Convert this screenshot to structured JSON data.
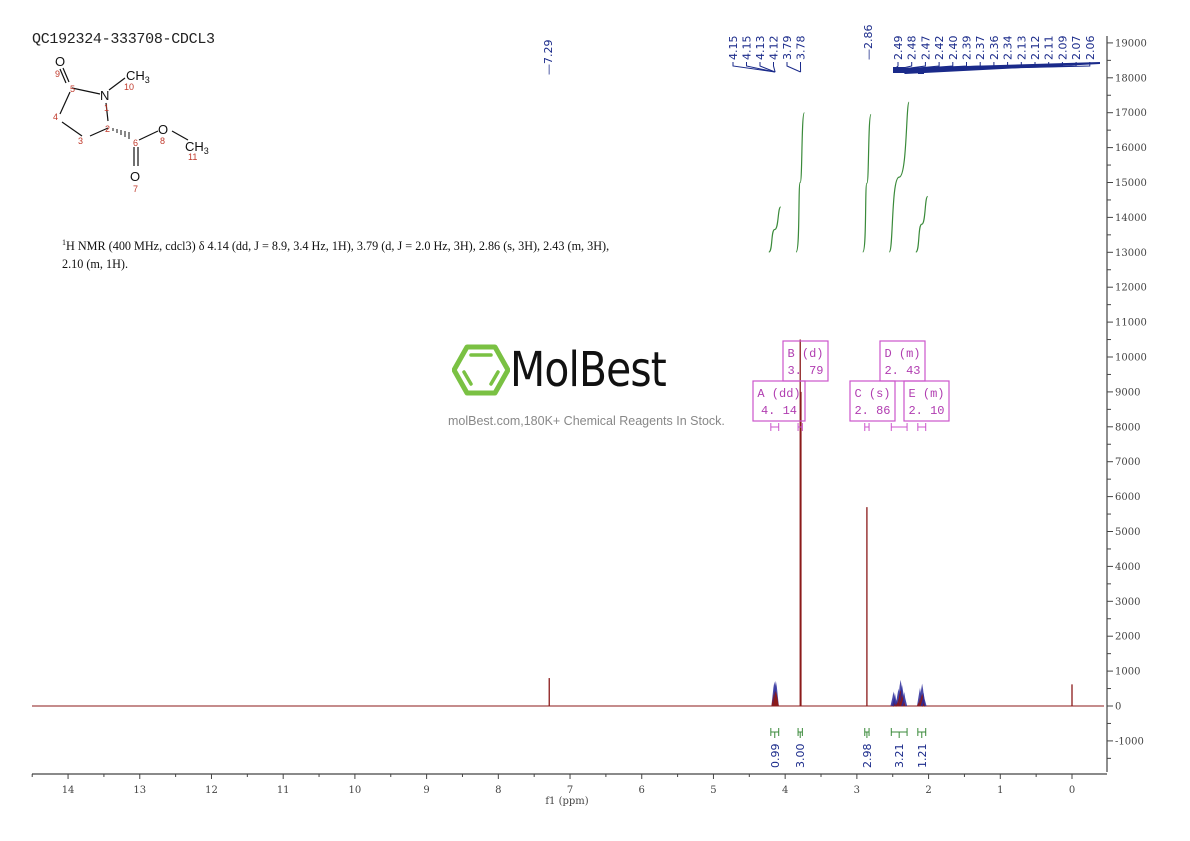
{
  "header": {
    "sample_id": "QC192324-333708-CDCL3"
  },
  "structure": {
    "atoms": [
      {
        "label": "O",
        "num": "9"
      },
      {
        "label": "CH3",
        "num": "10"
      },
      {
        "label": "N",
        "num": "1"
      },
      {
        "label": "C",
        "num": "5"
      },
      {
        "label": "C",
        "num": "4"
      },
      {
        "label": "C",
        "num": "3"
      },
      {
        "label": "C",
        "num": "2"
      },
      {
        "label": "C",
        "num": "6"
      },
      {
        "label": "O",
        "num": "8"
      },
      {
        "label": "CH3",
        "num": "11"
      },
      {
        "label": "O",
        "num": "7"
      }
    ]
  },
  "description": {
    "nucleus_sup": "1",
    "text": "H NMR (400 MHz, cdcl3) δ 4.14 (dd, J = 8.9, 3.4 Hz, 1H), 3.79 (d, J = 2.0 Hz, 3H), 2.86 (s, 3H), 2.43 (m, 3H), 2.10 (m, 1H)."
  },
  "watermark": {
    "brand": "MolBest",
    "tagline": "molBest.com,180K+ Chemical Reagents In Stock.",
    "brand_color": "#7ac143"
  },
  "colors": {
    "spectrum": "#8b1a1a",
    "peak_fill": "#2a2a9a",
    "integral": "#3a8a3a",
    "multiplet_box": "#cc55cc",
    "axis": "#444444",
    "peak_labels": "#1a2a8a"
  },
  "chart_data": {
    "type": "line",
    "title": "QC192324-333708-CDCL3",
    "xlabel": "f1 (ppm)",
    "ylabel": "",
    "xlim": [
      14.5,
      -0.45
    ],
    "ylim": [
      -1900,
      19000
    ],
    "x_ticks": [
      14,
      13,
      12,
      11,
      10,
      9,
      8,
      7,
      6,
      5,
      4,
      3,
      2,
      1,
      0
    ],
    "y_ticks": [
      -1000,
      0,
      1000,
      2000,
      3000,
      4000,
      5000,
      6000,
      7000,
      8000,
      9000,
      10000,
      11000,
      12000,
      13000,
      14000,
      15000,
      16000,
      17000,
      18000,
      19000
    ],
    "peaks": [
      {
        "ppm": 7.29,
        "intensity": 800,
        "note": "CDCl3 residual"
      },
      {
        "ppm": 4.15,
        "intensity": 700
      },
      {
        "ppm": 4.13,
        "intensity": 720
      },
      {
        "ppm": 3.79,
        "intensity": 10500
      },
      {
        "ppm": 3.78,
        "intensity": 9000
      },
      {
        "ppm": 2.86,
        "intensity": 5700
      },
      {
        "ppm": 2.49,
        "intensity": 420
      },
      {
        "ppm": 2.47,
        "intensity": 380
      },
      {
        "ppm": 2.42,
        "intensity": 500
      },
      {
        "ppm": 2.39,
        "intensity": 750
      },
      {
        "ppm": 2.37,
        "intensity": 600
      },
      {
        "ppm": 2.34,
        "intensity": 400
      },
      {
        "ppm": 2.12,
        "intensity": 520
      },
      {
        "ppm": 2.09,
        "intensity": 640
      },
      {
        "ppm": 2.07,
        "intensity": 380
      },
      {
        "ppm": 0.0,
        "intensity": 620,
        "note": "TMS"
      }
    ],
    "peak_labels": {
      "group1": [
        "4.15",
        "4.15",
        "4.13",
        "4.12"
      ],
      "group2": [
        "3.79",
        "3.78"
      ],
      "group3": [
        "2.86"
      ],
      "group4": [
        "2.49",
        "2.48",
        "2.47",
        "2.42",
        "2.40",
        "2.39",
        "2.37",
        "2.36",
        "2.34",
        "2.13",
        "2.12",
        "2.11",
        "2.09",
        "2.07",
        "2.06"
      ],
      "solvent": [
        "7.29"
      ]
    },
    "multiplets": [
      {
        "id": "A",
        "type": "dd",
        "shift": "4.14",
        "range": [
          4.2,
          4.09
        ]
      },
      {
        "id": "B",
        "type": "d",
        "shift": "3.79",
        "range": [
          3.82,
          3.76
        ]
      },
      {
        "id": "C",
        "type": "s",
        "shift": "2.86",
        "range": [
          2.89,
          2.83
        ]
      },
      {
        "id": "D",
        "type": "m",
        "shift": "2.43",
        "range": [
          2.52,
          2.3
        ]
      },
      {
        "id": "E",
        "type": "m",
        "shift": "2.10",
        "range": [
          2.15,
          2.04
        ]
      }
    ],
    "integrals": [
      {
        "value": "0.99",
        "range": [
          4.2,
          4.09
        ],
        "curve_top": 14300
      },
      {
        "value": "3.00",
        "range": [
          3.82,
          3.76
        ],
        "curve_top": 17000
      },
      {
        "value": "2.98",
        "range": [
          2.89,
          2.83
        ],
        "curve_top": 16950
      },
      {
        "value": "3.21",
        "range": [
          2.52,
          2.3
        ],
        "curve_top": 17300
      },
      {
        "value": "1.21",
        "range": [
          2.15,
          2.04
        ],
        "curve_top": 14600
      }
    ]
  }
}
